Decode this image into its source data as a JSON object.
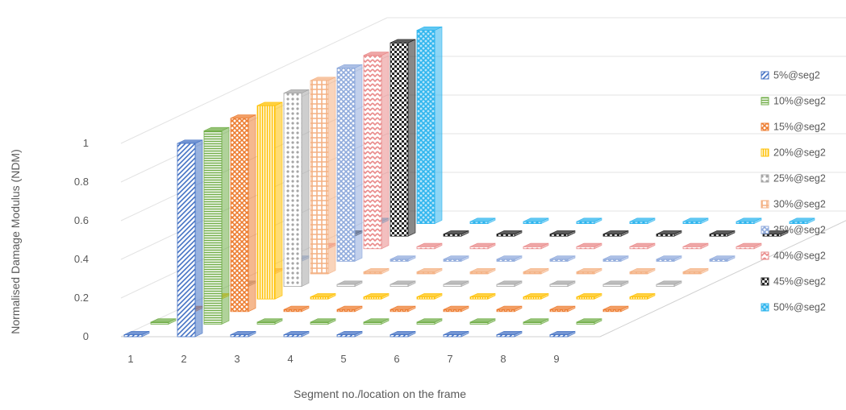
{
  "chart_data": {
    "type": "bar",
    "categories": [
      "1",
      "2",
      "3",
      "4",
      "5",
      "6",
      "7",
      "8",
      "9"
    ],
    "xlabel": "Segment no./location on the frame",
    "ylabel": "Normalised Damage Modulus (NDM)",
    "yticks": [
      "0",
      "0.2",
      "0.4",
      "0.6",
      "0.8",
      "1"
    ],
    "grid": true,
    "legend_position": "right",
    "series": [
      {
        "name": "5%@seg2",
        "color": "#4472C4",
        "values": [
          0,
          1,
          0,
          0,
          0,
          0,
          0,
          0,
          0
        ]
      },
      {
        "name": "10%@seg2",
        "color": "#70AD47",
        "values": [
          0,
          1,
          0,
          0,
          0,
          0,
          0,
          0,
          0
        ]
      },
      {
        "name": "15%@seg2",
        "color": "#ED7D31",
        "values": [
          0,
          1,
          0,
          0,
          0,
          0,
          0,
          0,
          0
        ]
      },
      {
        "name": "20%@seg2",
        "color": "#FFC000",
        "values": [
          0,
          1,
          0,
          0,
          0,
          0,
          0,
          0,
          0
        ]
      },
      {
        "name": "25%@seg2",
        "color": "#A5A5A5",
        "values": [
          0,
          1,
          0,
          0,
          0,
          0,
          0,
          0,
          0
        ]
      },
      {
        "name": "30%@seg2",
        "color": "#F4B183",
        "values": [
          0,
          1,
          0,
          0,
          0,
          0,
          0,
          0,
          0
        ]
      },
      {
        "name": "35%@seg2",
        "color": "#8FAADC",
        "values": [
          0,
          1,
          0,
          0,
          0,
          0,
          0,
          0,
          0
        ]
      },
      {
        "name": "40%@seg2",
        "color": "#E98A8A",
        "values": [
          0,
          1,
          0,
          0,
          0,
          0,
          0,
          0,
          0
        ]
      },
      {
        "name": "45%@seg2",
        "color": "#262626",
        "values": [
          0,
          1,
          0,
          0,
          0,
          0,
          0,
          0,
          0
        ]
      },
      {
        "name": "50%@seg2",
        "color": "#2EB5EE",
        "values": [
          0,
          1,
          0,
          0,
          0,
          0,
          0,
          0,
          0
        ]
      }
    ]
  }
}
